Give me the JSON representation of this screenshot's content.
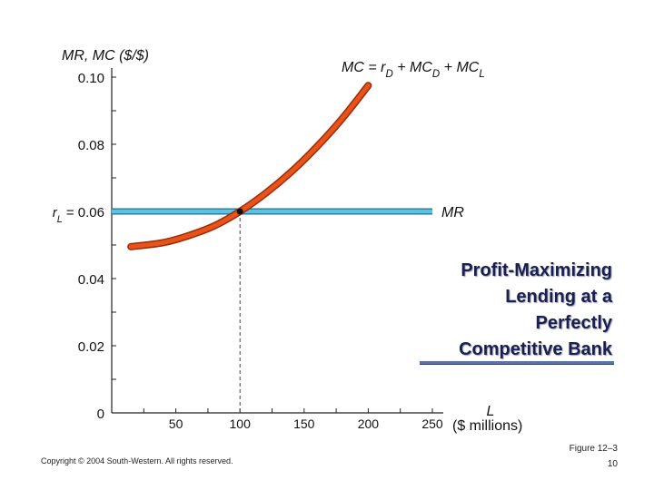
{
  "chart_data": {
    "type": "line",
    "ylabel": "MR, MC ($/$)",
    "xlabel_var": "L",
    "xlabel_units": "($ millions)",
    "xlim": [
      0,
      250
    ],
    "ylim": [
      0,
      0.1
    ],
    "x_ticks": [
      {
        "value": 50,
        "label": "50"
      },
      {
        "value": 100,
        "label": "100"
      },
      {
        "value": 150,
        "label": "150"
      },
      {
        "value": 200,
        "label": "200"
      },
      {
        "value": 250,
        "label": "250"
      }
    ],
    "y_ticks": [
      {
        "value": 0,
        "label": "0"
      },
      {
        "value": 0.02,
        "label": "0.02"
      },
      {
        "value": 0.04,
        "label": "0.04"
      },
      {
        "value": 0.08,
        "label": "0.08"
      },
      {
        "value": 0.1,
        "label": "0.10"
      }
    ],
    "y_tick_special": {
      "value": 0.06,
      "label_prefix": "r",
      "label_sub": "L",
      "label_suffix": " = 0.06"
    },
    "series": [
      {
        "name": "MR",
        "color": "#5bc3df",
        "x": [
          0,
          250
        ],
        "y": [
          0.06,
          0.06
        ]
      },
      {
        "name": "MC = rD + MCD + MCL",
        "color": "#e8531c",
        "x": [
          15,
          40,
          60,
          80,
          100,
          120,
          140,
          160,
          180,
          200
        ],
        "y": [
          0.0495,
          0.0507,
          0.0528,
          0.0557,
          0.06,
          0.0654,
          0.0718,
          0.0793,
          0.0878,
          0.0975
        ]
      }
    ],
    "annotations": {
      "mr_label": "MR",
      "mc_label_parts": {
        "a": "MC = r",
        "a_sub": "D",
        "b": " + MC",
        "b_sub": "D",
        "c": " + MC",
        "c_sub": "L"
      },
      "equilibrium": {
        "x": 100,
        "y": 0.06
      }
    },
    "grid": false
  },
  "side_title": [
    "Profit-Maximizing",
    "Lending at a",
    "Perfectly",
    "Competitive Bank"
  ],
  "copyright": "Copyright © 2004 South-Western. All rights reserved.",
  "figure_label": "Figure 12–3",
  "page_number": "10"
}
